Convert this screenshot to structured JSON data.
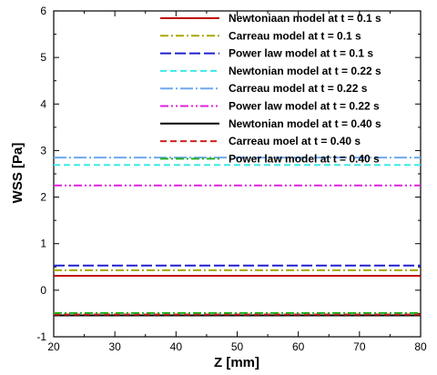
{
  "chart_data": {
    "type": "line",
    "xlabel": "Z [mm]",
    "ylabel": "WSS [Pa]",
    "xlim": [
      20,
      80
    ],
    "ylim": [
      -1,
      6
    ],
    "x_ticks": [
      20,
      30,
      40,
      50,
      60,
      70,
      80
    ],
    "y_ticks": [
      -1,
      0,
      1,
      2,
      3,
      4,
      5,
      6
    ],
    "grid": false,
    "legend_position": "top-right",
    "x": [
      20,
      80
    ],
    "series": [
      {
        "name": "Newtoniaan model at t = 0.1 s",
        "values": [
          0.31,
          0.31
        ],
        "color": "#c00000",
        "dash": "solid"
      },
      {
        "name": "Carreau model at t = 0.1 s",
        "values": [
          0.43,
          0.43
        ],
        "color": "#a8a800",
        "dash": "dashdot"
      },
      {
        "name": "Power law model at t = 0.1 s",
        "values": [
          0.53,
          0.53
        ],
        "color": "#2020d0",
        "dash": "longdash"
      },
      {
        "name": "Newtonian model at t = 0.22 s",
        "values": [
          2.69,
          2.69
        ],
        "color": "#40e8e8",
        "dash": "dash"
      },
      {
        "name": "Carreau model at t = 0.22 s",
        "values": [
          2.85,
          2.85
        ],
        "color": "#6fa8f0",
        "dash": "dashdotlong"
      },
      {
        "name": "Power law model at t = 0.22 s",
        "values": [
          2.25,
          2.25
        ],
        "color": "#e020e0",
        "dash": "dashdotdot"
      },
      {
        "name": "Newtonian model at t = 0.40 s",
        "values": [
          -0.54,
          -0.54
        ],
        "color": "#000000",
        "dash": "solid"
      },
      {
        "name": "Carreau moel at t = 0.40 s",
        "values": [
          -0.52,
          -0.52
        ],
        "color": "#d02020",
        "dash": "dash"
      },
      {
        "name": "Power law model at t = 0.40 s",
        "values": [
          -0.49,
          -0.49
        ],
        "color": "#20b020",
        "dash": "dashdot"
      }
    ]
  }
}
